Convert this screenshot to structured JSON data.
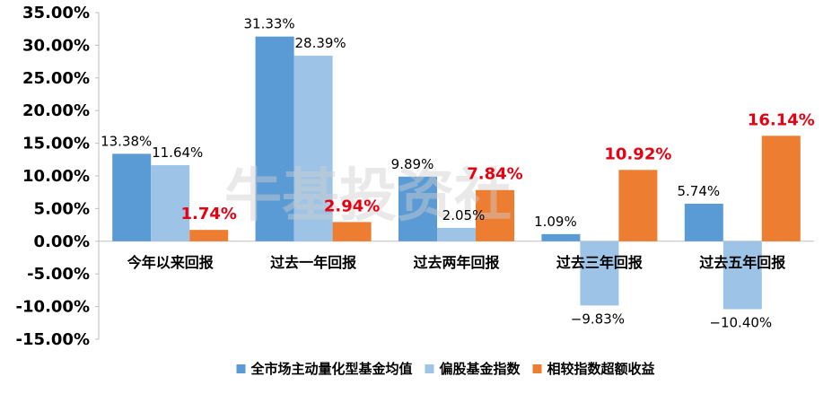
{
  "chart_data": {
    "type": "bar",
    "categories": [
      "今年以来回报",
      "过去一年回报",
      "过去两年回报",
      "过去三年回报",
      "过去五年回报"
    ],
    "series": [
      {
        "name": "全市场主动量化型基金均值",
        "values": [
          13.38,
          31.33,
          9.89,
          1.09,
          5.74
        ],
        "labels": [
          "13.38%",
          "31.33%",
          "9.89%",
          "1.09%",
          "5.74%"
        ],
        "color": "#5b9bd5"
      },
      {
        "name": "偏股基金指数",
        "values": [
          11.64,
          28.39,
          2.05,
          -9.83,
          -10.4
        ],
        "labels": [
          "11.64%",
          "28.39%",
          "2.05%",
          "−9.83%",
          "−10.40%"
        ],
        "color": "#9dc3e6"
      },
      {
        "name": "相较指数超额收益",
        "values": [
          1.74,
          2.94,
          7.84,
          10.92,
          16.14
        ],
        "labels": [
          "1.74%",
          "2.94%",
          "7.84%",
          "10.92%",
          "16.14%"
        ],
        "color": "#ed7d31"
      }
    ],
    "ylim": [
      -15,
      35
    ],
    "yticks": [
      35,
      30,
      25,
      20,
      15,
      10,
      5,
      0,
      -5,
      -10,
      -15
    ],
    "ytick_labels": [
      "35.00%",
      "30.00%",
      "25.00%",
      "20.00%",
      "15.00%",
      "10.00%",
      "5.00%",
      "0.00%",
      "-5.00%",
      "-10.00%",
      "-15.00%"
    ],
    "highlight_color": "#e60012",
    "legend_position": "bottom",
    "grid": false
  },
  "watermark": "牛基投资社"
}
